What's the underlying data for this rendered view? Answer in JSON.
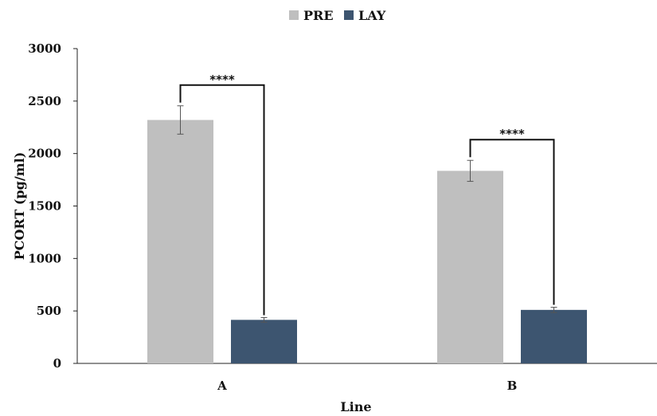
{
  "chart_data": {
    "type": "bar",
    "categories": [
      "A",
      "B"
    ],
    "series": [
      {
        "name": "PRE",
        "values": [
          2320,
          1835
        ],
        "errors": [
          135,
          100
        ],
        "color": "#bfbfbf"
      },
      {
        "name": "LAY",
        "values": [
          415,
          510
        ],
        "errors": [
          22,
          25
        ],
        "color": "#3d5570"
      }
    ],
    "xlabel": "Line",
    "ylabel": "PCORT (pg/ml)",
    "ylim": [
      0,
      3000
    ],
    "yticks": [
      0,
      500,
      1000,
      1500,
      2000,
      2500,
      3000
    ],
    "grid": false,
    "legend_position": "top-center",
    "annotations": [
      {
        "category": "A",
        "text": "****"
      },
      {
        "category": "B",
        "text": "****"
      }
    ]
  }
}
